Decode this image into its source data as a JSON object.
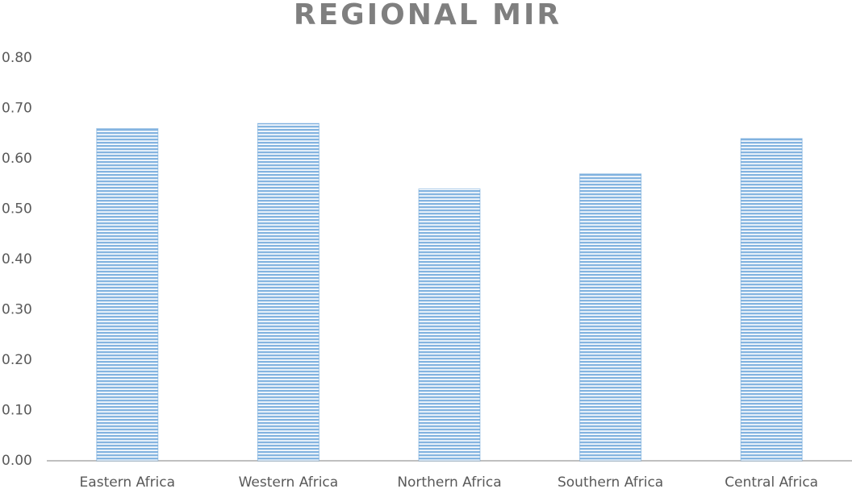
{
  "chart_data": {
    "type": "bar",
    "title": "REGIONAL MIR",
    "categories": [
      "Eastern Africa",
      "Western Africa",
      "Northern Africa",
      "Southern Africa",
      "Central Africa"
    ],
    "values": [
      0.66,
      0.67,
      0.54,
      0.57,
      0.64
    ],
    "color": "#5b9bd5",
    "ylim": [
      0,
      0.8
    ],
    "yticks": [
      {
        "value": 0,
        "label": "0.00"
      },
      {
        "value": 0.1,
        "label": "0.10"
      },
      {
        "value": 0.2,
        "label": "0.20"
      },
      {
        "value": 0.3,
        "label": "0.30"
      },
      {
        "value": 0.4,
        "label": "0.40"
      },
      {
        "value": 0.5,
        "label": "0.50"
      },
      {
        "value": 0.6,
        "label": "0.60"
      },
      {
        "value": 0.7,
        "label": "0.70"
      },
      {
        "value": 0.8,
        "label": "0.80"
      }
    ],
    "grid": false
  }
}
